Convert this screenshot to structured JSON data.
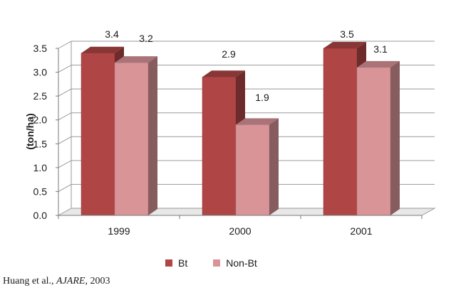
{
  "chart_data": {
    "type": "bar",
    "categories": [
      "1999",
      "2000",
      "2001"
    ],
    "series": [
      {
        "name": "Bt",
        "values": [
          3.4,
          2.9,
          3.5
        ],
        "labels": [
          "3.4",
          "2.9",
          "3.5"
        ],
        "color": "#b04545"
      },
      {
        "name": "Non-Bt",
        "values": [
          3.2,
          1.9,
          3.1
        ],
        "labels": [
          "3.2",
          "1.9",
          "3.1"
        ],
        "color": "#d99498"
      }
    ],
    "title": "",
    "xlabel": "",
    "ylabel": "(ton/ha)",
    "ylim": [
      0,
      3.5
    ],
    "yticks": [
      "0.0",
      "0.5",
      "1.0",
      "1.5",
      "2.0",
      "2.5",
      "3.0",
      "3.5"
    ],
    "grid": true,
    "legend_position": "bottom",
    "style": "3d"
  },
  "legend": {
    "bt": "Bt",
    "non_bt": "Non-Bt"
  },
  "citation": {
    "prefix": "Huang et al., ",
    "journal": "AJARE",
    "suffix": ", 2003"
  }
}
